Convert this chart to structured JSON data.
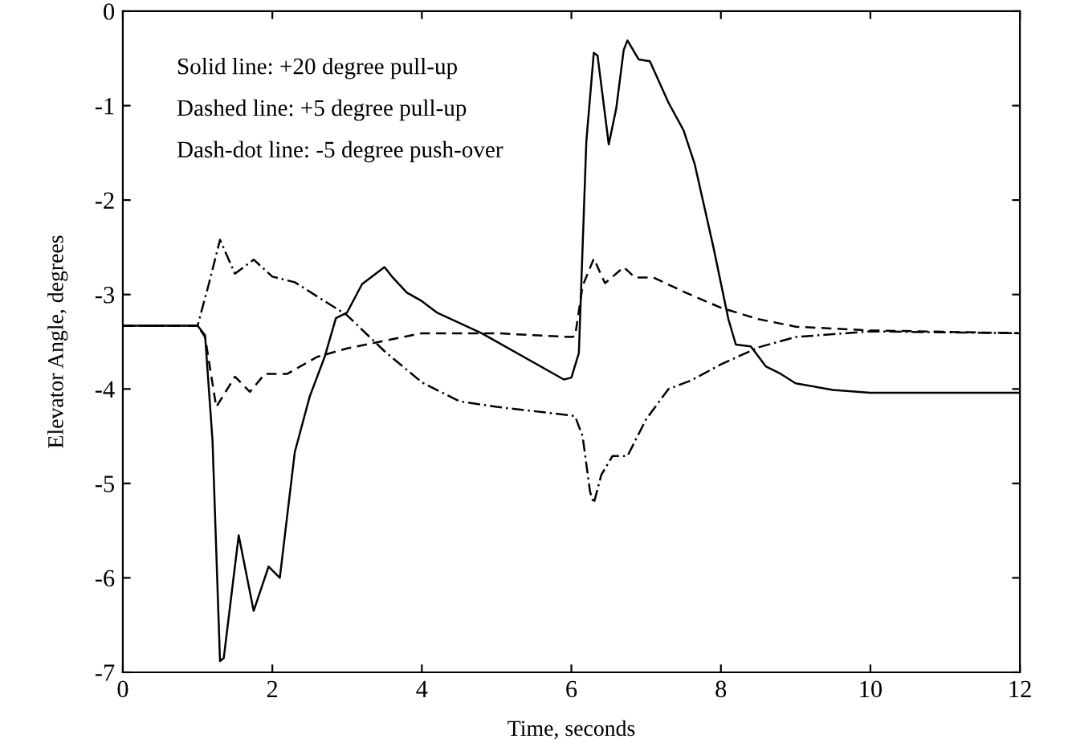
{
  "chart_data": {
    "type": "line",
    "xlabel": "Time, seconds",
    "ylabel": "Elevator Angle, degrees",
    "annotations": [
      "Solid line: +20 degree pull-up",
      "Dashed line: +5 degree pull-up",
      "Dash-dot line: -5 degree push-over"
    ],
    "xlim": [
      0,
      12
    ],
    "ylim": [
      -7,
      0
    ],
    "xticks": [
      0,
      2,
      4,
      6,
      8,
      10,
      12
    ],
    "yticks": [
      -7,
      -6,
      -5,
      -4,
      -3,
      -2,
      -1,
      0
    ],
    "grid": false,
    "legend": false,
    "marker": "none",
    "series": [
      {
        "color": "#000000",
        "line_style": "solid",
        "x": [
          0,
          1.0,
          1.1,
          1.2,
          1.3,
          1.35,
          1.55,
          1.75,
          1.95,
          2.1,
          2.3,
          2.5,
          2.7,
          2.85,
          3.0,
          3.2,
          3.5,
          3.6,
          3.8,
          4.0,
          4.2,
          4.8,
          5.9,
          6.0,
          6.1,
          6.2,
          6.3,
          6.35,
          6.5,
          6.6,
          6.7,
          6.75,
          6.9,
          7.05,
          7.3,
          7.5,
          7.65,
          7.9,
          8.1,
          8.2,
          8.4,
          8.6,
          8.8,
          9.0,
          9.5,
          10,
          12
        ],
        "values": [
          -3.33,
          -3.33,
          -3.43,
          -4.55,
          -6.88,
          -6.85,
          -5.55,
          -6.35,
          -5.88,
          -6.0,
          -4.67,
          -4.08,
          -3.66,
          -3.25,
          -3.19,
          -2.89,
          -2.71,
          -2.81,
          -2.98,
          -3.07,
          -3.19,
          -3.41,
          -3.9,
          -3.88,
          -3.62,
          -1.38,
          -0.44,
          -0.47,
          -1.41,
          -1.03,
          -0.41,
          -0.31,
          -0.51,
          -0.53,
          -0.97,
          -1.26,
          -1.62,
          -2.5,
          -3.26,
          -3.53,
          -3.55,
          -3.76,
          -3.84,
          -3.94,
          -4.01,
          -4.04,
          -4.04
        ]
      },
      {
        "color": "#000000",
        "line_style": "dashed",
        "x": [
          0,
          1.0,
          1.1,
          1.25,
          1.5,
          1.7,
          1.9,
          2.2,
          2.6,
          3.0,
          3.5,
          4.0,
          4.5,
          5.0,
          6.0,
          6.05,
          6.15,
          6.3,
          6.45,
          6.7,
          6.85,
          7.1,
          7.5,
          8.0,
          8.5,
          9.0,
          10,
          12
        ],
        "values": [
          -3.33,
          -3.33,
          -3.45,
          -4.19,
          -3.87,
          -4.03,
          -3.84,
          -3.84,
          -3.66,
          -3.57,
          -3.49,
          -3.41,
          -3.41,
          -3.41,
          -3.45,
          -3.44,
          -2.91,
          -2.62,
          -2.88,
          -2.71,
          -2.82,
          -2.82,
          -2.97,
          -3.14,
          -3.26,
          -3.34,
          -3.38,
          -3.41
        ]
      },
      {
        "color": "#000000",
        "line_style": "dashdot",
        "x": [
          0,
          1.0,
          1.15,
          1.3,
          1.5,
          1.75,
          2.0,
          2.3,
          3.0,
          3.5,
          4.0,
          4.5,
          5.0,
          6.0,
          6.05,
          6.15,
          6.25,
          6.3,
          6.4,
          6.55,
          6.75,
          7.0,
          7.3,
          7.6,
          8.0,
          8.5,
          9.0,
          10,
          12
        ],
        "values": [
          -3.33,
          -3.33,
          -2.89,
          -2.42,
          -2.78,
          -2.63,
          -2.81,
          -2.87,
          -3.22,
          -3.6,
          -3.93,
          -4.13,
          -4.19,
          -4.28,
          -4.29,
          -4.5,
          -5.09,
          -5.21,
          -4.91,
          -4.71,
          -4.71,
          -4.32,
          -4.0,
          -3.91,
          -3.74,
          -3.56,
          -3.45,
          -3.39,
          -3.41
        ]
      }
    ]
  }
}
